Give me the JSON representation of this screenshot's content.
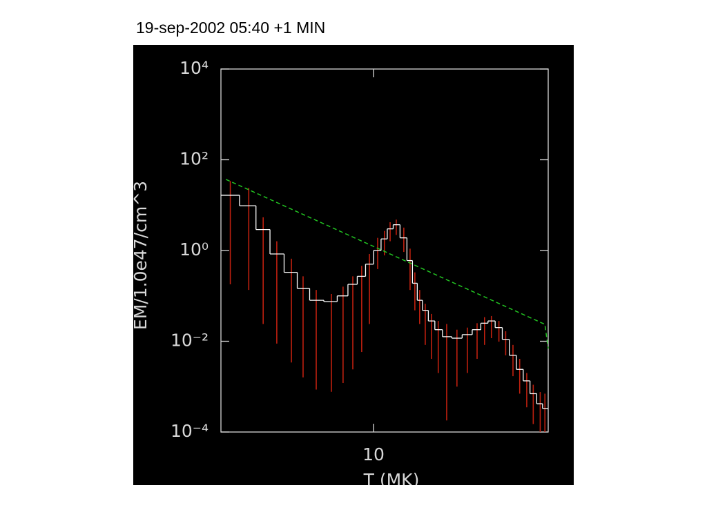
{
  "chart_data": {
    "type": "step",
    "title": "19-sep-2002 05:40 +1 MIN",
    "x_label": "T (MK)",
    "y_label": "EM/1.0e47/cm^3",
    "x_log": true,
    "y_log": true,
    "xlim": [
      4.2,
      27
    ],
    "ylim": [
      0.0001,
      10000
    ],
    "xticks": [
      10
    ],
    "yticks": [
      {
        "value": 0.0001,
        "label": "10⁻⁴"
      },
      {
        "value": 0.01,
        "label": "10⁻²"
      },
      {
        "value": 1,
        "label": "10⁰"
      },
      {
        "value": 100,
        "label": "10²"
      },
      {
        "value": 10000,
        "label": "10⁴"
      }
    ],
    "series": [
      {
        "color": "#ffffff",
        "error_color": "#c0200f",
        "x": [
          4.43,
          4.92,
          5.34,
          5.77,
          6.27,
          6.7,
          7.22,
          7.87,
          8.41,
          8.89,
          9.35,
          9.77,
          10.24,
          10.64,
          10.99,
          11.38,
          11.88,
          12.31,
          12.65,
          13.0,
          13.42,
          13.9,
          14.45,
          15.16,
          16.07,
          17.05,
          18.02,
          18.8,
          19.55,
          20.4,
          21.2,
          22.1,
          22.96,
          23.9,
          24.8,
          25.8,
          26.5
        ],
        "values": [
          16.5,
          9.7,
          2.9,
          0.84,
          0.33,
          0.146,
          0.08,
          0.075,
          0.1,
          0.18,
          0.27,
          0.5,
          1.0,
          1.8,
          3.0,
          3.7,
          1.9,
          0.6,
          0.19,
          0.08,
          0.048,
          0.028,
          0.018,
          0.0126,
          0.0117,
          0.014,
          0.018,
          0.025,
          0.028,
          0.02,
          0.011,
          0.0049,
          0.0024,
          0.00134,
          0.0007,
          0.00042,
          0.00033
        ],
        "lower": [
          0.18,
          0.135,
          0.024,
          0.0089,
          0.0034,
          0.0016,
          0.00086,
          0.00077,
          0.0012,
          0.0024,
          0.0058,
          0.024,
          0.39,
          0.78,
          1.6,
          2.2,
          0.93,
          0.135,
          0.048,
          0.024,
          0.0083,
          0.0041,
          0.002,
          0.00018,
          0.001,
          0.002,
          0.0041,
          0.0083,
          0.0117,
          0.0098,
          0.0049,
          0.0017,
          0.0007,
          0.00035,
          0.00015,
          0.0001,
          0.0001
        ],
        "upper": [
          34,
          24,
          5.4,
          1.6,
          0.66,
          0.27,
          0.135,
          0.11,
          0.16,
          0.27,
          0.46,
          0.84,
          1.9,
          2.7,
          4.2,
          4.8,
          3.2,
          1.1,
          0.33,
          0.135,
          0.067,
          0.04,
          0.028,
          0.024,
          0.018,
          0.02,
          0.025,
          0.034,
          0.036,
          0.028,
          0.0166,
          0.0083,
          0.0041,
          0.002,
          0.0011,
          0.00076,
          0.0007
        ]
      },
      {
        "color": "#22c322",
        "dashed": true,
        "x": [
          4.32,
          10.0,
          26.5,
          27.0
        ],
        "values": [
          37,
          1.23,
          0.0236,
          0.0069
        ]
      }
    ]
  }
}
